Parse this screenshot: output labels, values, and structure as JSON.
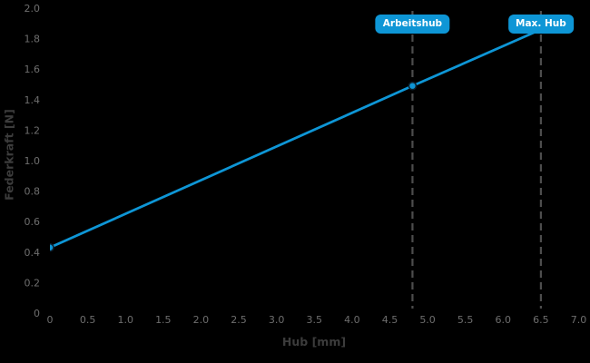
{
  "chart_data": {
    "type": "line",
    "title": "",
    "xlabel": "Hub [mm]",
    "ylabel": "Federkraft [N]",
    "xlim": [
      0,
      7.0
    ],
    "ylim": [
      0,
      2.0
    ],
    "grid": false,
    "legend": "none",
    "x_ticks": [
      "0",
      "0.5",
      "1.0",
      "1.5",
      "2.0",
      "2.5",
      "3.0",
      "3.5",
      "4.0",
      "4.5",
      "5.0",
      "5.5",
      "6.0",
      "6.5",
      "7.0"
    ],
    "y_ticks": [
      "0",
      "0.2",
      "0.4",
      "0.6",
      "0.8",
      "1.0",
      "1.2",
      "1.4",
      "1.6",
      "1.8",
      "2.0"
    ],
    "series": [
      {
        "color": "#0e96d6",
        "points": [
          [
            0,
            0.43
          ],
          [
            4.8,
            1.49
          ],
          [
            6.5,
            1.86
          ]
        ],
        "marker_points": [
          [
            0,
            0.43
          ],
          [
            4.8,
            1.49
          ]
        ]
      }
    ],
    "annotations": [
      {
        "label": "Arbeitshub",
        "x": 4.8
      },
      {
        "label": "Max. Hub",
        "x": 6.5
      }
    ]
  },
  "colors": {
    "background": "#000000",
    "line": "#0e96d6",
    "marker_fill": "#0e96d6",
    "marker_edge": "#0d2230",
    "dashed_line": "#4d4d4d",
    "tick_label": "#6e6e6e",
    "axis_title": "#3c3c3c",
    "annotation_bg": "#0e96d6",
    "annotation_text": "#ffffff"
  }
}
